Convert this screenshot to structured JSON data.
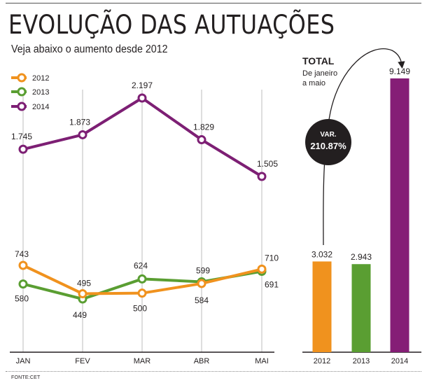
{
  "header": {
    "title": "EVOLUÇÃO DAS AUTUAÇÕES",
    "subtitle": "Veja abaixo o aumento desde 2012",
    "source": "FONTE:CET"
  },
  "chart_data": [
    {
      "type": "line",
      "categories": [
        "JAN",
        "FEV",
        "MAR",
        "ABR",
        "MAI"
      ],
      "series": [
        {
          "name": "2012",
          "values": [
            743,
            495,
            500,
            584,
            710
          ],
          "labels": [
            "743",
            "495",
            "500",
            "584",
            "710"
          ],
          "color": "#f0921e"
        },
        {
          "name": "2013",
          "values": [
            580,
            449,
            624,
            599,
            691
          ],
          "labels": [
            "580",
            "449",
            "624",
            "599",
            "691"
          ],
          "color": "#5a9e32"
        },
        {
          "name": "2014",
          "values": [
            1745,
            1873,
            2197,
            1829,
            1505
          ],
          "labels": [
            "1.745",
            "1.873",
            "2.197",
            "1.829",
            "1.505"
          ],
          "color": "#7d1f74"
        }
      ],
      "legend": "top-left",
      "grid": "vertical"
    },
    {
      "type": "bar",
      "title": "TOTAL",
      "subtitle_lines": [
        "De janeiro",
        "a maio"
      ],
      "categories": [
        "2012",
        "2013",
        "2014"
      ],
      "values": [
        3032,
        2943,
        9149
      ],
      "labels": [
        "3.032",
        "2.943",
        "9.149"
      ],
      "colors": [
        "#f0921e",
        "#5a9e32",
        "#851e76"
      ],
      "annotation": {
        "line1": "VAR.",
        "line2": "210.87%"
      }
    }
  ]
}
